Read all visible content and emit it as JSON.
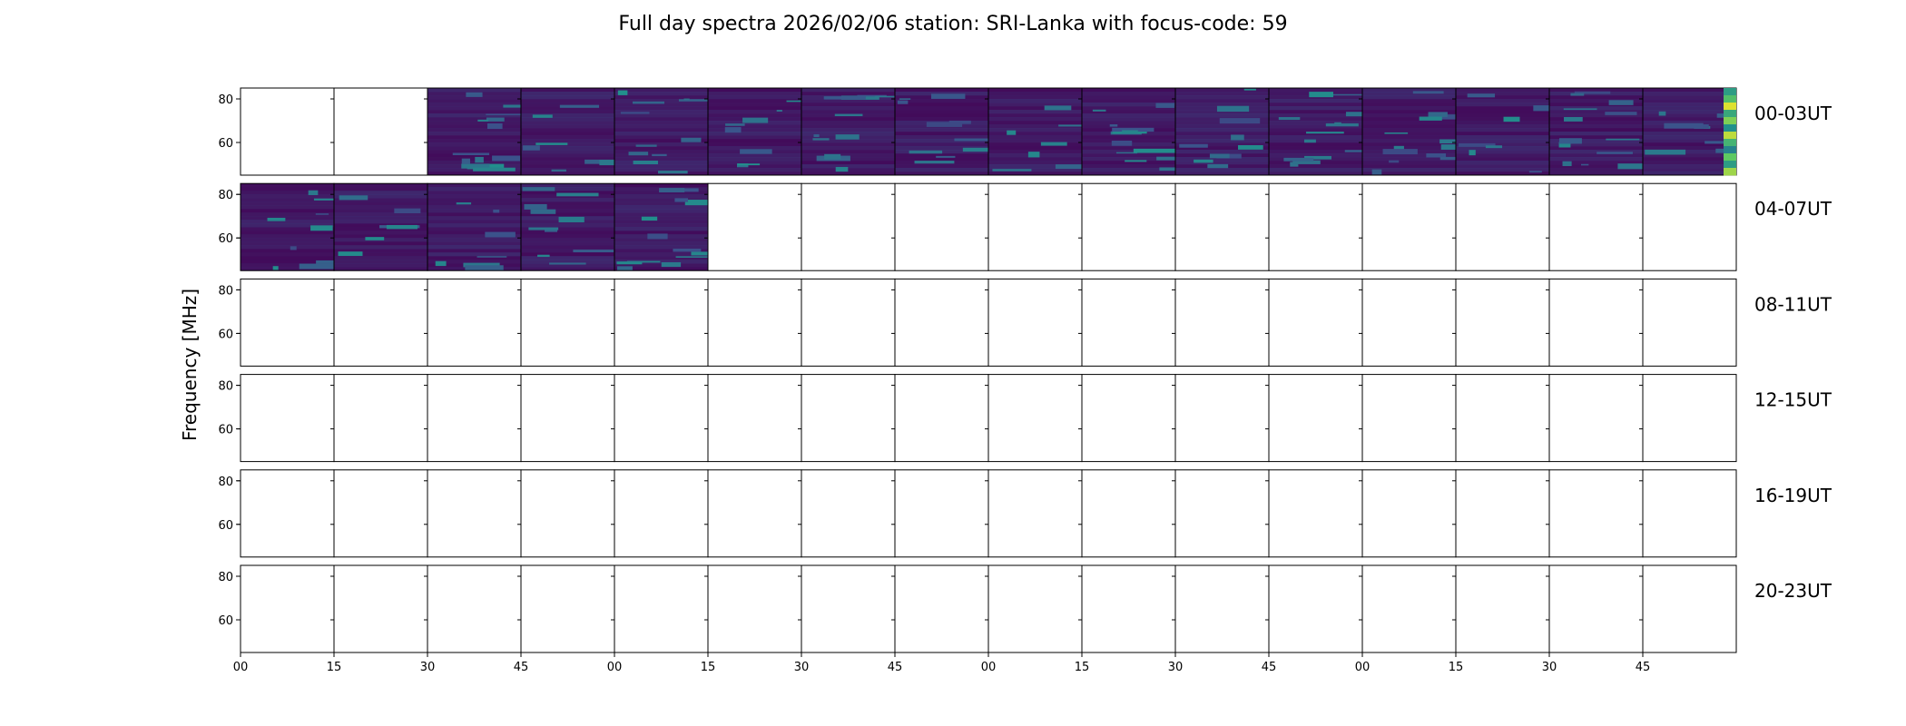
{
  "chart_data": {
    "type": "heatmap",
    "title": "Full day spectra 2026/02/06 station: SRI-Lanka with focus-code: 59",
    "ylabel": "Frequency [MHz]",
    "xlabel": "",
    "ylim": [
      45,
      85
    ],
    "yticks": [
      "80",
      "60"
    ],
    "xticks": [
      "00",
      "15",
      "30",
      "45",
      "00",
      "15",
      "30",
      "45",
      "00",
      "15",
      "30",
      "45",
      "00",
      "15",
      "30",
      "45"
    ],
    "colormap": [
      "#440154",
      "#3b528b",
      "#21918c",
      "#5ec962",
      "#fde725"
    ],
    "rows": [
      {
        "label": "00-03UT",
        "panels": [
          0,
          0,
          1,
          1,
          1,
          1,
          1,
          1,
          1,
          1,
          1,
          1,
          1,
          1,
          1,
          1
        ]
      },
      {
        "label": "04-07UT",
        "panels": [
          1,
          1,
          1,
          1,
          1,
          0,
          0,
          0,
          0,
          0,
          0,
          0,
          0,
          0,
          0,
          0
        ]
      },
      {
        "label": "08-11UT",
        "panels": [
          0,
          0,
          0,
          0,
          0,
          0,
          0,
          0,
          0,
          0,
          0,
          0,
          0,
          0,
          0,
          0
        ]
      },
      {
        "label": "12-15UT",
        "panels": [
          0,
          0,
          0,
          0,
          0,
          0,
          0,
          0,
          0,
          0,
          0,
          0,
          0,
          0,
          0,
          0
        ]
      },
      {
        "label": "16-19UT",
        "panels": [
          0,
          0,
          0,
          0,
          0,
          0,
          0,
          0,
          0,
          0,
          0,
          0,
          0,
          0,
          0,
          0
        ]
      },
      {
        "label": "20-23UT",
        "panels": [
          0,
          0,
          0,
          0,
          0,
          0,
          0,
          0,
          0,
          0,
          0,
          0,
          0,
          0,
          0,
          0
        ]
      }
    ],
    "panel_duration_min": 15,
    "panels_per_row": 16
  }
}
